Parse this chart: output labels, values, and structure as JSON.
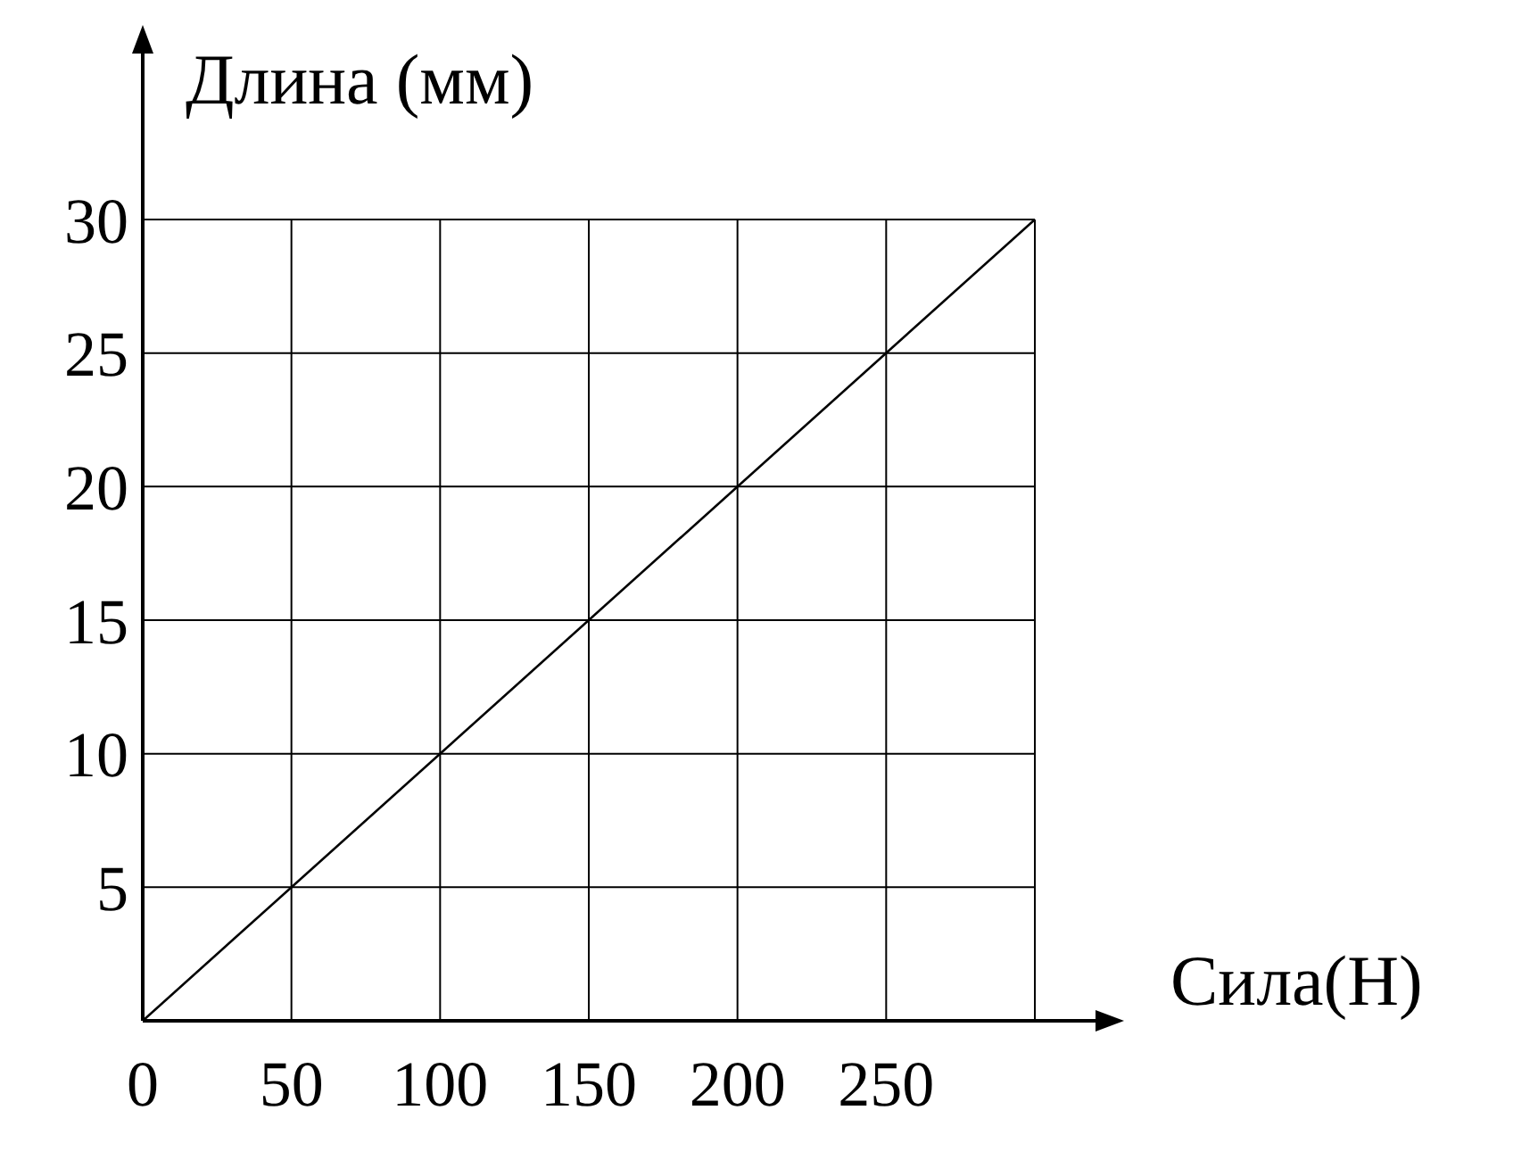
{
  "chart_data": {
    "type": "line",
    "xlabel": "Сила(Н)",
    "ylabel": "Длина (мм)",
    "x": [
      0,
      300
    ],
    "series": [
      {
        "color": "#000000",
        "values": [
          0,
          30
        ]
      }
    ],
    "xlim": [
      0,
      300
    ],
    "xticks": [
      0,
      50,
      100,
      150,
      200,
      250,
      {
        "value": 300,
        "label": null
      }
    ],
    "ylim": [
      0,
      30
    ],
    "yticks": [
      {
        "value": 0,
        "label": null
      },
      5,
      10,
      15,
      20,
      25,
      30
    ],
    "grid": true,
    "marker": "none",
    "line_style": "solid"
  }
}
